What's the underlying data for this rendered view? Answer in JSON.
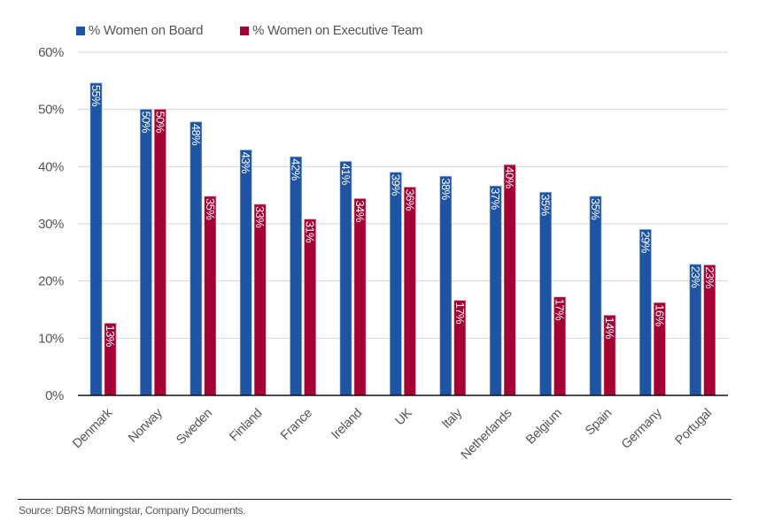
{
  "chart_data": {
    "type": "bar",
    "title": "",
    "xlabel": "",
    "ylabel": "",
    "ylim": [
      0,
      60
    ],
    "yticks": [
      0,
      10,
      20,
      30,
      40,
      50,
      60
    ],
    "ytick_labels": [
      "0%",
      "10%",
      "20%",
      "30%",
      "40%",
      "50%",
      "60%"
    ],
    "grid": true,
    "legend_position": "top-left",
    "categories": [
      "Denmark",
      "Norway",
      "Sweden",
      "Finland",
      "France",
      "Ireland",
      "UK",
      "Italy",
      "Netherlands",
      "Belgium",
      "Spain",
      "Germany",
      "Portugal"
    ],
    "series": [
      {
        "name": "% Women on Board",
        "color": "#1f54a3",
        "values": [
          54.6,
          50.0,
          47.8,
          42.9,
          41.7,
          40.9,
          39.0,
          38.3,
          36.6,
          35.5,
          34.8,
          29.0,
          22.9
        ],
        "labels": [
          "55%",
          "50%",
          "48%",
          "43%",
          "42%",
          "41%",
          "39%",
          "38%",
          "37%",
          "35%",
          "35%",
          "29%",
          "23%"
        ]
      },
      {
        "name": "% Women on Executive Team",
        "color": "#a50034",
        "values": [
          12.6,
          50.0,
          34.8,
          33.4,
          30.8,
          34.4,
          36.4,
          16.6,
          40.3,
          17.2,
          14.0,
          16.2,
          22.8
        ],
        "labels": [
          "13%",
          "50%",
          "35%",
          "33%",
          "31%",
          "34%",
          "36%",
          "17%",
          "40%",
          "17%",
          "14%",
          "16%",
          "23%"
        ]
      }
    ],
    "source": "Source: DBRS Morningstar, Company Documents."
  }
}
